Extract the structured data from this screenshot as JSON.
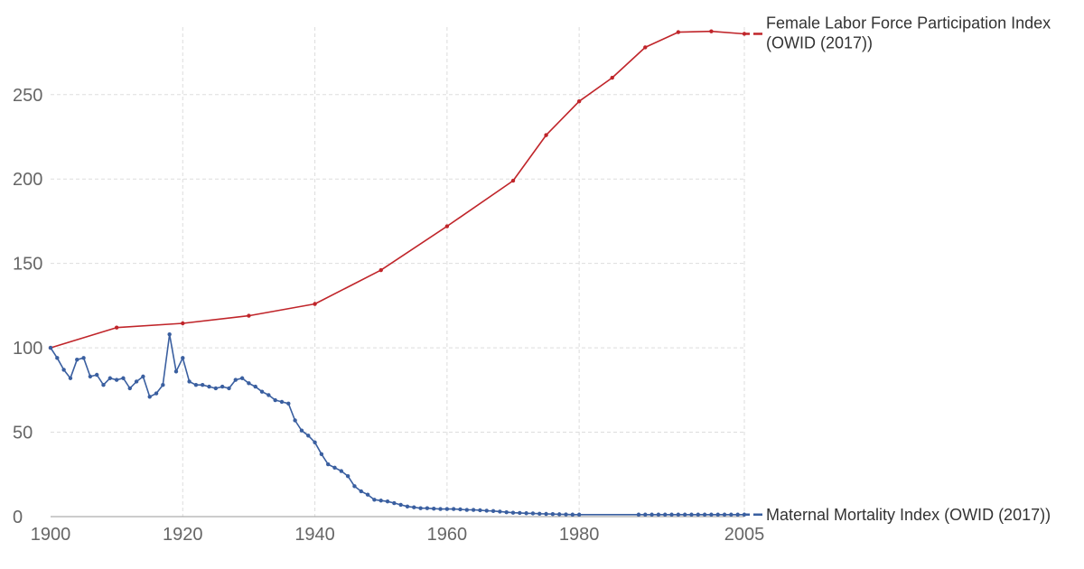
{
  "chart_data": {
    "type": "line",
    "x_range": [
      1900,
      2005
    ],
    "ylim": [
      0,
      290
    ],
    "y_ticks": [
      0,
      50,
      100,
      150,
      200,
      250
    ],
    "x_ticks": [
      1900,
      1920,
      1940,
      1960,
      1980,
      2005
    ],
    "grid": true,
    "legend_placement": "right (labels at line ends)",
    "series": [
      {
        "name": "Female Labor Force Participation Index (OWID (2017))",
        "label_lines": [
          "Female Labor Force Participation Index",
          "(OWID (2017))"
        ],
        "color": "#c0252a",
        "points": [
          [
            1900,
            100
          ],
          [
            1910,
            112
          ],
          [
            1920,
            114.5
          ],
          [
            1930,
            119
          ],
          [
            1940,
            126
          ],
          [
            1950,
            146
          ],
          [
            1960,
            172
          ],
          [
            1970,
            199
          ],
          [
            1975,
            226
          ],
          [
            1980,
            246
          ],
          [
            1985,
            260
          ],
          [
            1990,
            278
          ],
          [
            1995,
            287
          ],
          [
            2000,
            287.5
          ],
          [
            2005,
            286
          ]
        ]
      },
      {
        "name": "Maternal Mortality Index (OWID (2017))",
        "label_lines": [
          "Maternal Mortality Index (OWID (2017))"
        ],
        "color": "#3a5fa0",
        "points": [
          [
            1900,
            100
          ],
          [
            1901,
            94
          ],
          [
            1902,
            87
          ],
          [
            1903,
            82
          ],
          [
            1904,
            93
          ],
          [
            1905,
            94
          ],
          [
            1906,
            83
          ],
          [
            1907,
            84
          ],
          [
            1908,
            78
          ],
          [
            1909,
            82
          ],
          [
            1910,
            81
          ],
          [
            1911,
            82
          ],
          [
            1912,
            76
          ],
          [
            1913,
            80
          ],
          [
            1914,
            83
          ],
          [
            1915,
            71
          ],
          [
            1916,
            73
          ],
          [
            1917,
            78
          ],
          [
            1918,
            108
          ],
          [
            1919,
            86
          ],
          [
            1920,
            94
          ],
          [
            1921,
            80
          ],
          [
            1922,
            78
          ],
          [
            1923,
            78
          ],
          [
            1924,
            77
          ],
          [
            1925,
            76
          ],
          [
            1926,
            77
          ],
          [
            1927,
            76
          ],
          [
            1928,
            81
          ],
          [
            1929,
            82
          ],
          [
            1930,
            79
          ],
          [
            1931,
            77
          ],
          [
            1932,
            74
          ],
          [
            1933,
            72
          ],
          [
            1934,
            69
          ],
          [
            1935,
            68
          ],
          [
            1936,
            67
          ],
          [
            1937,
            57
          ],
          [
            1938,
            51
          ],
          [
            1939,
            48
          ],
          [
            1940,
            44
          ],
          [
            1941,
            37
          ],
          [
            1942,
            31
          ],
          [
            1943,
            29
          ],
          [
            1944,
            27
          ],
          [
            1945,
            24
          ],
          [
            1946,
            18
          ],
          [
            1947,
            15
          ],
          [
            1948,
            13
          ],
          [
            1949,
            10
          ],
          [
            1950,
            9.5
          ],
          [
            1951,
            9
          ],
          [
            1952,
            8
          ],
          [
            1953,
            7
          ],
          [
            1954,
            6
          ],
          [
            1955,
            5.5
          ],
          [
            1956,
            5
          ],
          [
            1957,
            5
          ],
          [
            1958,
            4.7
          ],
          [
            1959,
            4.5
          ],
          [
            1960,
            4.5
          ],
          [
            1961,
            4.5
          ],
          [
            1962,
            4.3
          ],
          [
            1963,
            4
          ],
          [
            1964,
            4
          ],
          [
            1965,
            3.8
          ],
          [
            1966,
            3.5
          ],
          [
            1967,
            3.3
          ],
          [
            1968,
            3
          ],
          [
            1969,
            2.6
          ],
          [
            1970,
            2.3
          ],
          [
            1971,
            2.2
          ],
          [
            1972,
            2
          ],
          [
            1973,
            1.9
          ],
          [
            1974,
            1.7
          ],
          [
            1975,
            1.6
          ],
          [
            1976,
            1.5
          ],
          [
            1977,
            1.4
          ],
          [
            1978,
            1.3
          ],
          [
            1979,
            1.2
          ],
          [
            1980,
            1.2
          ],
          [
            1989,
            1.2
          ],
          [
            1990,
            1.2
          ],
          [
            1991,
            1.2
          ],
          [
            1992,
            1.2
          ],
          [
            1993,
            1.2
          ],
          [
            1994,
            1.2
          ],
          [
            1995,
            1.2
          ],
          [
            1996,
            1.2
          ],
          [
            1997,
            1.2
          ],
          [
            1998,
            1.2
          ],
          [
            1999,
            1.2
          ],
          [
            2000,
            1.2
          ],
          [
            2001,
            1.2
          ],
          [
            2002,
            1.2
          ],
          [
            2003,
            1.2
          ],
          [
            2004,
            1.2
          ],
          [
            2005,
            1.2
          ]
        ]
      }
    ]
  }
}
